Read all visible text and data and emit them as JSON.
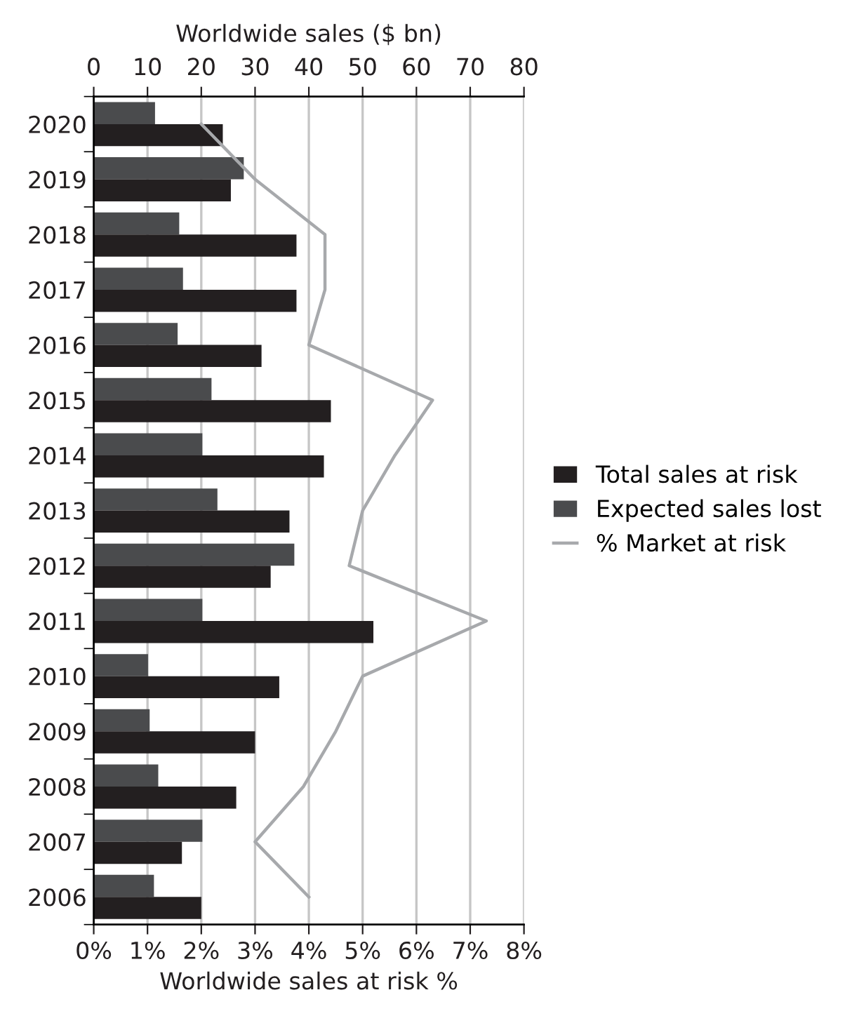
{
  "chart_data": {
    "type": "bar",
    "orientation": "horizontal",
    "xlabel": "Worldwide sales at risk %",
    "x2label": "Worldwide sales ($ bn)",
    "categories": [
      "2020",
      "2019",
      "2018",
      "2017",
      "2016",
      "2015",
      "2014",
      "2013",
      "2012",
      "2011",
      "2010",
      "2009",
      "2008",
      "2007",
      "2006"
    ],
    "series": [
      {
        "name": "Expected sales lost",
        "color": "#4a4b4d",
        "axis": "x2",
        "values": [
          11.4,
          27.9,
          15.9,
          16.6,
          15.6,
          21.9,
          20.2,
          23.0,
          37.3,
          20.2,
          10.1,
          10.4,
          12.0,
          20.2,
          11.2
        ]
      },
      {
        "name": "Total sales at risk",
        "color": "#231f20",
        "axis": "x2",
        "values": [
          24.0,
          25.5,
          37.7,
          37.7,
          31.2,
          44.1,
          42.8,
          36.4,
          32.9,
          52,
          34.5,
          30.0,
          26.5,
          16.4,
          20.0
        ]
      },
      {
        "name": "% Market at risk",
        "type": "line",
        "color": "#a7a9ac",
        "values": [
          2.0,
          3.0,
          4.3,
          4.3,
          4.0,
          6.3,
          5.6,
          5.0,
          4.75,
          7.3,
          5.0,
          4.5,
          3.9,
          3.0,
          4.0
        ]
      }
    ],
    "xlim": [
      0,
      8
    ],
    "xticks": [
      {
        "value": 0,
        "label": "0%"
      },
      {
        "value": 1,
        "label": "1%"
      },
      {
        "value": 2,
        "label": "2%"
      },
      {
        "value": 3,
        "label": "3%"
      },
      {
        "value": 4,
        "label": "4%"
      },
      {
        "value": 5,
        "label": "5%"
      },
      {
        "value": 6,
        "label": "6%"
      },
      {
        "value": 7,
        "label": "7%"
      },
      {
        "value": 8,
        "label": "8%"
      }
    ],
    "x2lim": [
      0,
      80
    ],
    "x2ticks": [
      0,
      10,
      20,
      30,
      40,
      50,
      60,
      70,
      80
    ],
    "grid": "x",
    "legend": "right",
    "line_style": "solid",
    "marker": "none"
  }
}
